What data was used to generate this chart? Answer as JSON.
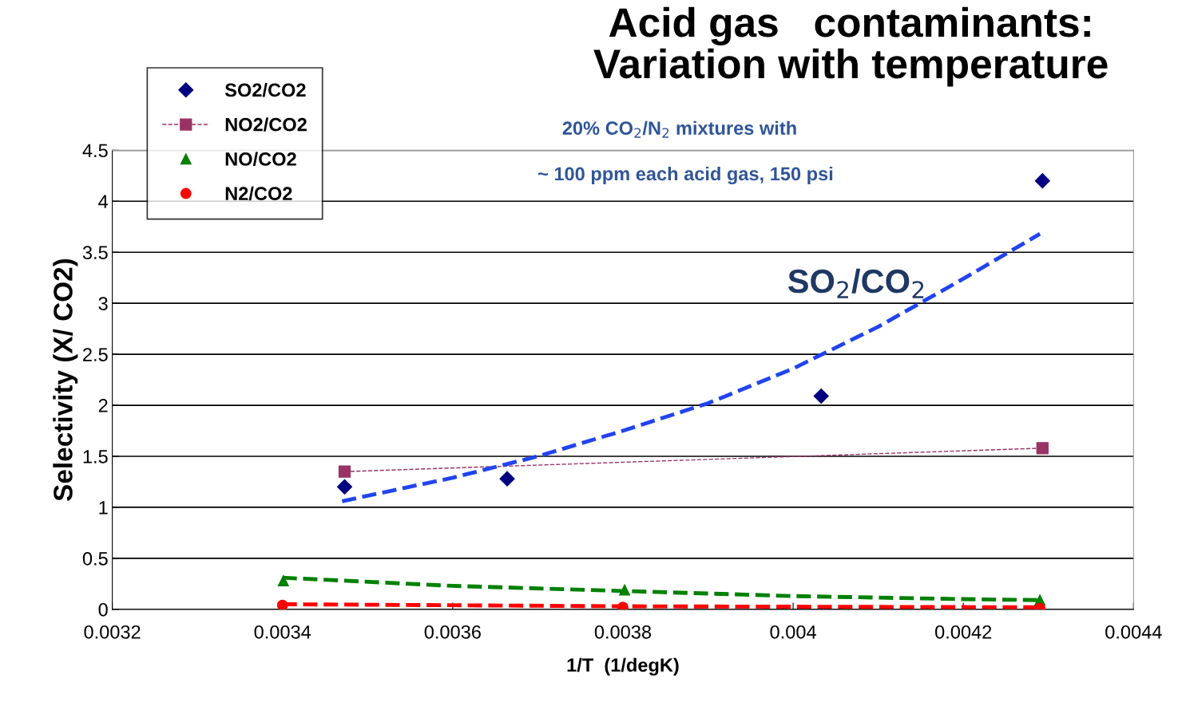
{
  "chart_data": {
    "type": "scatter",
    "title": "Acid gas   contaminants:\nVariation with temperature",
    "xlabel": "1/T  (1/degK)",
    "ylabel": "Selectivity (X/ CO2)",
    "xlim": [
      0.0032,
      0.0044
    ],
    "xticks": [
      0.0032,
      0.0034,
      0.0036,
      0.0038,
      0.004,
      0.0042,
      0.0044
    ],
    "ylim": [
      0,
      4.5
    ],
    "yticks": [
      0,
      0.5,
      1,
      1.5,
      2,
      2.5,
      3,
      3.5,
      4,
      4.5
    ],
    "grid": "y",
    "legend": "top left",
    "annotations": [
      "20% CO$_{2}$/N$_{2}$ mixtures with",
      "~ 100 ppm each acid gas, 150 psi",
      "SO$_{2}$/CO$_{2}$"
    ],
    "series": [
      {
        "name": "SO2/CO2",
        "marker": "diamond",
        "color": "#000080",
        "x": [
          0.003473,
          0.003664,
          0.004033,
          0.004293
        ],
        "values": [
          1.2,
          1.28,
          2.09,
          4.2
        ]
      },
      {
        "name": "NO2/CO2",
        "type": "line",
        "marker": "square",
        "line_style": "dashed",
        "color": "#993366",
        "x": [
          0.003473,
          0.004293
        ],
        "values": [
          1.35,
          1.58
        ]
      },
      {
        "name": "NO/CO2",
        "marker": "triangle",
        "color": "#008000",
        "x": [
          0.003401,
          0.003802,
          0.00429
        ],
        "values": [
          0.28,
          0.19,
          0.09
        ]
      },
      {
        "name": "N2/CO2",
        "marker": "circle",
        "color": "#ff0000",
        "x": [
          0.0034,
          0.0038,
          0.00429
        ],
        "values": [
          0.04,
          0.02,
          0.01
        ]
      },
      {
        "type": "line",
        "marker": "none",
        "line_style": "dashed",
        "color": "#2244ee",
        "x": [
          0.00347,
          0.0036,
          0.0037,
          0.0038,
          0.0039,
          0.004,
          0.0041,
          0.0042,
          0.00429
        ],
        "values": [
          1.06,
          1.29,
          1.5,
          1.75,
          2.02,
          2.36,
          2.77,
          3.24,
          3.68
        ]
      },
      {
        "type": "line",
        "marker": "none",
        "line_style": "dashed",
        "color": "#008000",
        "x": [
          0.0034,
          0.0036,
          0.0038,
          0.004,
          0.0042,
          0.00429
        ],
        "values": [
          0.31,
          0.23,
          0.18,
          0.13,
          0.1,
          0.09
        ]
      },
      {
        "type": "line",
        "marker": "none",
        "line_style": "dashed",
        "color": "#ff0000",
        "x": [
          0.0034,
          0.0038,
          0.00429
        ],
        "values": [
          0.05,
          0.03,
          0.02
        ]
      }
    ]
  }
}
